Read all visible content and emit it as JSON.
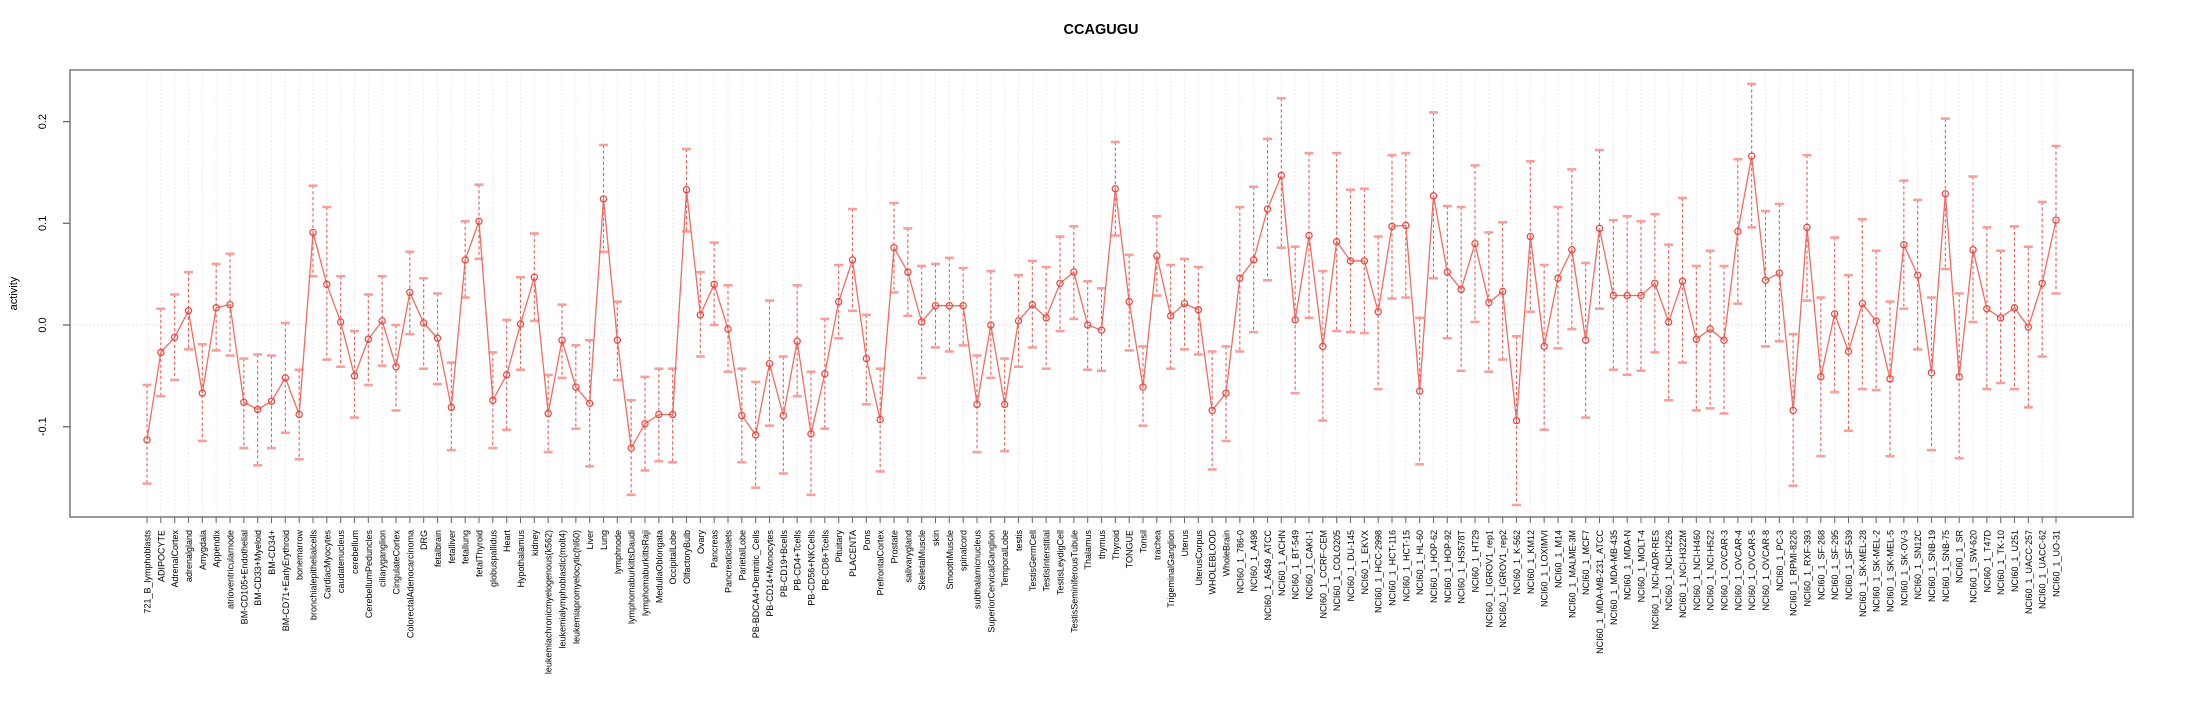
{
  "chart_data": {
    "type": "line",
    "title": "CCAGUGU",
    "ylabel": "activity",
    "xlabel": "",
    "ylim": [
      -0.189,
      0.25
    ],
    "grid": "dotted vertical gridline per category; dotted horizontal line at 0",
    "legend_position": "none",
    "marker": "open-circle",
    "error_bars": true,
    "ytick_values": [
      0.2,
      0.1,
      0.0,
      -0.1
    ],
    "ytick_labels": [
      "0.2",
      "0.1",
      "0.0",
      "-0.1"
    ],
    "categories": [
      "721_B_lymphoblasts",
      "ADIPOCYTE",
      "AdrenalCortex",
      "adrenalgland",
      "Amygdala",
      "Appendix",
      "atrioventricularnode",
      "BM-CD105+Endothelial",
      "BM-CD33+Myeloid",
      "BM-CD34+",
      "BM-CD71+EarlyErythroid",
      "bonemarrow",
      "bronchialepithelialcells",
      "CardiacMyocytes",
      "caudatenucleus",
      "cerebellum",
      "CerebellumPeduncles",
      "ciliaryganglion",
      "CingulateCortex",
      "ColorectalAdenocarcinoma",
      "DRG",
      "fetalbrain",
      "fetalliver",
      "fetallung",
      "fetalThyroid",
      "globuspallidus",
      "Heart",
      "Hypothalamus",
      "kidney",
      "leukemiachronicmyelogenous(k562)",
      "leukemialymphoblastic(molt4)",
      "leukemiapromyelocytic(hl60)",
      "Liver",
      "Lung",
      "lymphnode",
      "lymphomaburkittsDaudi",
      "lymphomaburkittsRaji",
      "MedullaOblongata",
      "OccipitalLobe",
      "OlfactoryBulb",
      "Ovary",
      "Pancreas",
      "Pancreaticislets",
      "ParietalLobe",
      "PB-BDCA4+Dentritic_Cells",
      "PB-CD14+Monocytes",
      "PB-CD19+Bcells",
      "PB-CD4+Tcells",
      "PB-CD56+NKCells",
      "PB-CD8+Tcells",
      "Pituitary",
      "PLACENTA",
      "Pons",
      "PrefrontalCortex",
      "Prostate",
      "salivarygland",
      "SkeletalMuscle",
      "skin",
      "SmoothMuscle",
      "spinalcord",
      "subthalamicnucleus",
      "SuperiorCervicalGanglion",
      "TemporalLobe",
      "testis",
      "TestisGermCell",
      "TestisInterstitial",
      "TestisLeydigCell",
      "TestisSeminiferousTubule",
      "Thalamus",
      "thymus",
      "Thyroid",
      "TONGUE",
      "Tonsil",
      "trachea",
      "TrigeminalGanglion",
      "Uterus",
      "UterusCorpus",
      "WHOLEBLOOD",
      "WholeBrain",
      "NCI60_1_786-0",
      "NCI60_1_A498",
      "NCI60_1_A549_ATCC",
      "NCI60_1_ACHN",
      "NCI60_1_BT-549",
      "NCI60_1_CAKI-1",
      "NCI60_1_CCRF-CEM",
      "NCI60_1_COLO205",
      "NCI60_1_DU-145",
      "NCI60_1_EKVX",
      "NCI60_1_HCC-2998",
      "NCI60_1_HCT-116",
      "NCI60_1_HCT-15",
      "NCI60_1_HL-60",
      "NCI60_1_HOP-62",
      "NCI60_1_HOP-92",
      "NCI60_1_HS578T",
      "NCI60_1_HT29",
      "NCI60_1_IGROV1_rep1",
      "NCI60_1_IGROV1_rep2",
      "NCI60_1_K-562",
      "NCI60_1_KM12",
      "NCI60_1_LOXIMVI",
      "NCI60_1_M14",
      "NCI60_1_MALME-3M",
      "NCI60_1_MCF7",
      "NCI60_1_MDA-MB-231_ATCC",
      "NCI60_1_MDA-MB-435",
      "NCI60_1_MDA-N",
      "NCI60_1_MOLT-4",
      "NCI60_1_NCI-ADR-RES",
      "NCI60_1_NCI-H226",
      "NCI60_1_NCI-H322M",
      "NCI60_1_NCI-H460",
      "NCI60_1_NCI-H522",
      "NCI60_1_OVCAR-3",
      "NCI60_1_OVCAR-4",
      "NCI60_1_OVCAR-5",
      "NCI60_1_OVCAR-8",
      "NCI60_1_PC-3",
      "NCI60_1_RPMI-8226",
      "NCI60_1_RXF-393",
      "NCI60_1_SF-268",
      "NCI60_1_SF-295",
      "NCI60_1_SF-539",
      "NCI60_1_SK-MEL-28",
      "NCI60_1_SK-MEL-2",
      "NCI60_1_SK-MEL-5",
      "NCI60_1_SK-OV-3",
      "NCI60_1_SN12C",
      "NCI60_1_SNB-19",
      "NCI60_1_SNB-75",
      "NCI60_1_SR",
      "NCI60_1_SW-620",
      "NCI60_1_T47D",
      "NCI60_1_TK-10",
      "NCI60_1_U251",
      "NCI60_1_UACC-257",
      "NCI60_1_UACC-62",
      "NCI60_1_UO-31"
    ],
    "values": [
      -0.113,
      -0.027,
      -0.012,
      0.014,
      -0.067,
      0.017,
      0.02,
      -0.076,
      -0.083,
      -0.075,
      -0.052,
      -0.088,
      0.091,
      0.04,
      0.003,
      -0.05,
      -0.014,
      0.004,
      -0.041,
      0.032,
      0.002,
      -0.013,
      -0.081,
      0.064,
      0.102,
      -0.074,
      -0.049,
      0.001,
      0.047,
      -0.087,
      -0.015,
      -0.061,
      -0.077,
      0.124,
      -0.015,
      -0.121,
      -0.097,
      -0.088,
      -0.088,
      0.133,
      0.01,
      0.04,
      -0.004,
      -0.089,
      -0.108,
      -0.038,
      -0.089,
      -0.016,
      -0.107,
      -0.048,
      0.023,
      0.064,
      -0.033,
      -0.093,
      0.076,
      0.052,
      0.003,
      0.019,
      0.019,
      0.019,
      -0.078,
      0.0,
      -0.078,
      0.004,
      0.02,
      0.007,
      0.041,
      0.052,
      0.0,
      -0.005,
      0.134,
      0.023,
      -0.061,
      0.068,
      0.009,
      0.021,
      0.015,
      -0.084,
      -0.067,
      0.046,
      0.064,
      0.114,
      0.147,
      0.005,
      0.088,
      -0.021,
      0.082,
      0.063,
      0.063,
      0.013,
      0.097,
      0.098,
      -0.065,
      0.127,
      0.052,
      0.035,
      0.08,
      0.022,
      0.033,
      -0.094,
      0.087,
      -0.021,
      0.046,
      0.074,
      -0.015,
      0.095,
      0.029,
      0.029,
      0.029,
      0.041,
      0.003,
      0.043,
      -0.014,
      -0.004,
      -0.015,
      0.092,
      0.166,
      0.044,
      0.051,
      -0.084,
      0.096,
      -0.051,
      0.011,
      -0.026,
      0.021,
      0.004,
      -0.053,
      0.079,
      0.049,
      -0.047,
      0.129,
      -0.051,
      0.074,
      0.016,
      0.007,
      0.017,
      -0.002,
      0.041,
      0.103
    ],
    "err_lo": [
      -0.156,
      -0.07,
      -0.054,
      -0.024,
      -0.114,
      -0.025,
      -0.03,
      -0.121,
      -0.138,
      -0.121,
      -0.106,
      -0.132,
      0.048,
      -0.034,
      -0.041,
      -0.091,
      -0.059,
      -0.04,
      -0.084,
      -0.009,
      -0.043,
      -0.058,
      -0.123,
      0.027,
      0.065,
      -0.121,
      -0.103,
      -0.044,
      0.004,
      -0.125,
      -0.052,
      -0.102,
      -0.139,
      0.072,
      -0.054,
      -0.167,
      -0.143,
      -0.134,
      -0.135,
      0.092,
      -0.031,
      0.0,
      -0.046,
      -0.135,
      -0.16,
      -0.099,
      -0.146,
      -0.07,
      -0.167,
      -0.102,
      -0.013,
      0.014,
      -0.078,
      -0.144,
      0.032,
      0.009,
      -0.052,
      -0.022,
      -0.026,
      -0.02,
      -0.125,
      -0.052,
      -0.124,
      -0.041,
      -0.022,
      -0.043,
      -0.006,
      0.006,
      -0.044,
      -0.045,
      0.088,
      -0.025,
      -0.099,
      0.029,
      -0.043,
      -0.024,
      -0.029,
      -0.142,
      -0.114,
      -0.026,
      -0.007,
      0.044,
      0.076,
      -0.067,
      0.007,
      -0.094,
      -0.006,
      -0.007,
      -0.008,
      -0.063,
      0.026,
      0.027,
      -0.137,
      0.046,
      -0.013,
      -0.045,
      0.003,
      -0.046,
      -0.034,
      -0.177,
      0.013,
      -0.103,
      -0.023,
      -0.004,
      -0.091,
      0.016,
      -0.044,
      -0.049,
      -0.045,
      -0.027,
      -0.074,
      -0.037,
      -0.084,
      -0.082,
      -0.087,
      0.021,
      0.096,
      -0.021,
      -0.016,
      -0.158,
      0.024,
      -0.129,
      -0.066,
      -0.104,
      -0.063,
      -0.064,
      -0.129,
      0.016,
      -0.024,
      -0.123,
      0.055,
      -0.131,
      0.003,
      -0.063,
      -0.057,
      -0.063,
      -0.081,
      -0.031,
      0.031
    ],
    "err_hi": [
      -0.059,
      0.016,
      0.03,
      0.052,
      -0.019,
      0.06,
      0.07,
      -0.033,
      -0.029,
      -0.03,
      0.002,
      -0.044,
      0.137,
      0.116,
      0.048,
      -0.006,
      0.03,
      0.048,
      0.0,
      0.072,
      0.046,
      0.031,
      -0.037,
      0.102,
      0.138,
      -0.027,
      0.005,
      0.047,
      0.09,
      -0.049,
      0.02,
      -0.02,
      -0.015,
      0.177,
      0.023,
      -0.074,
      -0.051,
      -0.043,
      -0.043,
      0.173,
      0.052,
      0.081,
      0.039,
      -0.043,
      -0.056,
      0.024,
      -0.031,
      0.039,
      -0.046,
      0.006,
      0.059,
      0.114,
      0.01,
      -0.043,
      0.12,
      0.095,
      0.058,
      0.06,
      0.066,
      0.056,
      -0.03,
      0.053,
      -0.033,
      0.049,
      0.063,
      0.057,
      0.087,
      0.097,
      0.043,
      0.036,
      0.18,
      0.069,
      -0.021,
      0.107,
      0.059,
      0.065,
      0.057,
      -0.026,
      -0.021,
      0.116,
      0.136,
      0.183,
      0.223,
      0.077,
      0.169,
      0.053,
      0.169,
      0.133,
      0.134,
      0.087,
      0.167,
      0.169,
      0.007,
      0.209,
      0.117,
      0.116,
      0.157,
      0.091,
      0.101,
      -0.011,
      0.161,
      0.059,
      0.116,
      0.153,
      0.061,
      0.172,
      0.103,
      0.107,
      0.102,
      0.109,
      0.079,
      0.125,
      0.058,
      0.073,
      0.058,
      0.163,
      0.237,
      0.112,
      0.119,
      -0.009,
      0.167,
      0.027,
      0.086,
      0.049,
      0.104,
      0.073,
      0.023,
      0.142,
      0.123,
      0.027,
      0.203,
      0.031,
      0.146,
      0.096,
      0.073,
      0.097,
      0.077,
      0.121,
      0.176
    ]
  },
  "colors": {
    "point": "#e8453c",
    "segment": "#f26c63",
    "error_line": "#ee5a52",
    "error_cap": "#f6a09b",
    "grid": "#e4e4e4",
    "zero_line": "#dcdcdc",
    "axis": "#888888",
    "tick": "#707070",
    "text": "#000000",
    "background": "#ffffff"
  }
}
